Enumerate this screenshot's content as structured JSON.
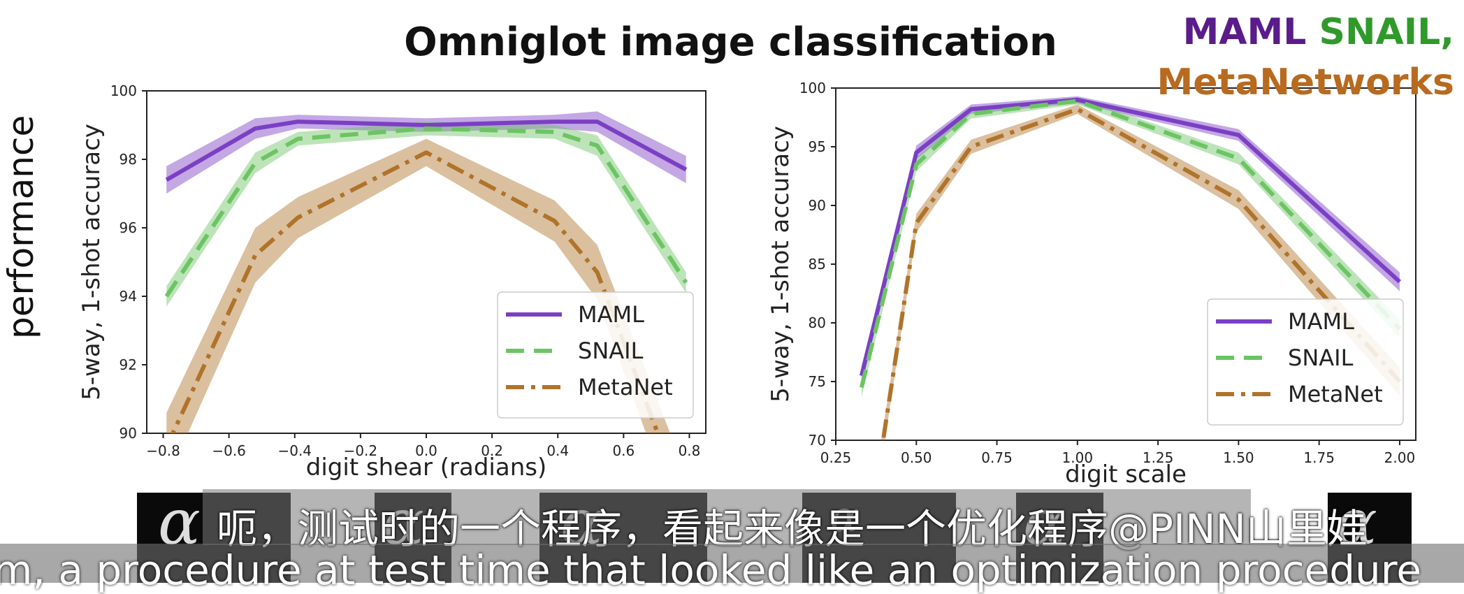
{
  "header": {
    "title": "Omniglot image classification",
    "methods_line1": [
      {
        "text": "MAML",
        "color": "#5a1c8a"
      },
      {
        "text": " ",
        "color": "#000000"
      },
      {
        "text": "SNAIL,",
        "color": "#2f9a2a"
      }
    ],
    "methods_line2": {
      "text": "MetaNetworks",
      "color": "#b86a1f"
    }
  },
  "page_ylabel": "performance",
  "subtitles": {
    "chinese": "呃，测试时的一个程序，看起来像是一个优化程序@PINN山里娃",
    "english": "m, a procedure at test time that looked like an optimization procedure"
  },
  "chart_data": [
    {
      "type": "line",
      "xlabel": "digit shear (radians)",
      "ylabel": "5-way, 1-shot accuracy",
      "xlim": [
        -0.85,
        0.85
      ],
      "ylim": [
        90,
        100
      ],
      "xticks": [
        -0.8,
        -0.6,
        -0.4,
        -0.2,
        0.0,
        0.2,
        0.4,
        0.6,
        0.8
      ],
      "xtick_labels": [
        "−0.8",
        "−0.6",
        "−0.4",
        "−0.2",
        "0.0",
        "0.2",
        "0.4",
        "0.6",
        "0.8"
      ],
      "yticks": [
        90,
        92,
        94,
        96,
        98,
        100
      ],
      "ytick_labels": [
        "90",
        "92",
        "94",
        "96",
        "98",
        "100"
      ],
      "legend_position": "lower-right",
      "series": [
        {
          "name": "MAML",
          "color": "#7b3fc4",
          "dash": "solid",
          "x": [
            -0.79,
            -0.52,
            -0.39,
            0.0,
            0.39,
            0.52,
            0.79
          ],
          "y": [
            97.4,
            98.9,
            99.1,
            99.0,
            99.1,
            99.1,
            97.7
          ],
          "band": [
            0.4,
            0.3,
            0.2,
            0.2,
            0.2,
            0.3,
            0.4
          ]
        },
        {
          "name": "SNAIL",
          "color": "#6cc463",
          "dash": "dashed",
          "x": [
            -0.79,
            -0.52,
            -0.39,
            0.0,
            0.39,
            0.52,
            0.79
          ],
          "y": [
            94.0,
            97.9,
            98.6,
            98.9,
            98.8,
            98.4,
            94.4
          ],
          "band": [
            0.3,
            0.3,
            0.2,
            0.2,
            0.2,
            0.3,
            0.3
          ]
        },
        {
          "name": "MetaNet",
          "color": "#b0732a",
          "dash": "dashdot",
          "x": [
            -0.79,
            -0.52,
            -0.39,
            0.0,
            0.39,
            0.52,
            0.79
          ],
          "y": [
            89.6,
            95.2,
            96.3,
            98.2,
            96.2,
            94.7,
            87.8
          ],
          "band": [
            1.0,
            0.8,
            0.6,
            0.4,
            0.6,
            0.8,
            1.0
          ]
        }
      ]
    },
    {
      "type": "line",
      "xlabel": "digit scale",
      "ylabel": "5-way, 1-shot accuracy",
      "xlim": [
        0.25,
        2.05
      ],
      "ylim": [
        70,
        100
      ],
      "xticks": [
        0.25,
        0.5,
        0.75,
        1.0,
        1.25,
        1.5,
        1.75,
        2.0
      ],
      "xtick_labels": [
        "0.25",
        "0.50",
        "0.75",
        "1.00",
        "1.25",
        "1.50",
        "1.75",
        "2.00"
      ],
      "yticks": [
        70,
        75,
        80,
        85,
        90,
        95,
        100
      ],
      "ytick_labels": [
        "70",
        "75",
        "80",
        "85",
        "90",
        "95",
        "100"
      ],
      "legend_position": "lower-right",
      "series": [
        {
          "name": "MAML",
          "color": "#7b3fc4",
          "dash": "solid",
          "x": [
            0.33,
            0.5,
            0.67,
            1.0,
            1.5,
            2.0
          ],
          "y": [
            75.5,
            94.5,
            98.2,
            99.0,
            96.0,
            83.5
          ],
          "band": [
            0.8,
            0.6,
            0.4,
            0.3,
            0.5,
            0.8
          ]
        },
        {
          "name": "SNAIL",
          "color": "#6cc463",
          "dash": "dashed",
          "x": [
            0.33,
            0.5,
            0.67,
            1.0,
            1.5,
            2.0
          ],
          "y": [
            74.5,
            93.5,
            97.8,
            98.9,
            94.0,
            79.5
          ],
          "band": [
            0.8,
            0.6,
            0.4,
            0.3,
            0.5,
            0.8
          ]
        },
        {
          "name": "MetaNet",
          "color": "#b0732a",
          "dash": "dashdot",
          "x": [
            0.33,
            0.5,
            0.67,
            1.0,
            1.5,
            2.0
          ],
          "y": [
            58.0,
            88.5,
            95.0,
            98.2,
            90.5,
            75.0
          ],
          "band": [
            1.2,
            0.8,
            0.6,
            0.4,
            0.8,
            1.2
          ]
        }
      ]
    }
  ]
}
